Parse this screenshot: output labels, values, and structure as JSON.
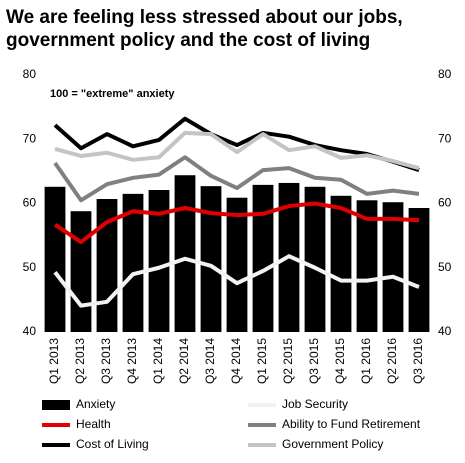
{
  "chart_data": {
    "type": "bar-line",
    "title": [
      "We are feeling less stressed about our jobs,",
      "government policy and the cost of living"
    ],
    "annotation": "100 = \"extreme\" anxiety",
    "categories": [
      "Q1 2013",
      "Q2 2013",
      "Q3 2013",
      "Q4 2013",
      "Q1 2014",
      "Q2 2014",
      "Q3 2014",
      "Q4 2014",
      "Q1 2015",
      "Q2 2015",
      "Q3 2015",
      "Q4 2015",
      "Q1 2016",
      "Q2 2016",
      "Q3 2016"
    ],
    "series": [
      {
        "name": "Anxiety",
        "kind": "bar",
        "color": "#000000",
        "values": [
          62.6,
          58.8,
          60.7,
          61.5,
          62.1,
          64.4,
          62.7,
          60.9,
          62.9,
          63.2,
          62.6,
          61.2,
          60.5,
          60.2,
          59.3
        ]
      },
      {
        "name": "Job Security",
        "kind": "line",
        "color": "#f2f2f2",
        "values": [
          49.3,
          44.1,
          44.7,
          49.0,
          50.0,
          51.4,
          50.3,
          47.6,
          49.5,
          51.8,
          50.0,
          48.0,
          48.0,
          48.6,
          47.0
        ]
      },
      {
        "name": "Health",
        "kind": "line",
        "color": "#e00000",
        "values": [
          56.7,
          54.0,
          57.1,
          58.8,
          58.4,
          59.3,
          58.5,
          58.2,
          58.4,
          59.6,
          60.0,
          59.3,
          57.6,
          57.6,
          57.4
        ]
      },
      {
        "name": "Ability to Fund Retirement",
        "kind": "line",
        "color": "#808080",
        "values": [
          66.3,
          60.5,
          63.0,
          64.0,
          64.5,
          67.2,
          64.3,
          62.4,
          65.2,
          65.5,
          64.0,
          63.7,
          61.5,
          62.0,
          61.5
        ]
      },
      {
        "name": "Cost of Living",
        "kind": "line",
        "color": "#000000",
        "values": [
          72.2,
          68.6,
          70.8,
          68.9,
          69.9,
          73.2,
          70.8,
          69.1,
          71.0,
          70.4,
          69.1,
          68.3,
          67.7,
          66.5,
          65.2
        ]
      },
      {
        "name": "Government Policy",
        "kind": "line",
        "color": "#c4c4c4",
        "values": [
          68.5,
          67.4,
          67.9,
          66.8,
          67.2,
          71.0,
          70.8,
          68.0,
          70.8,
          68.3,
          68.9,
          67.1,
          67.5,
          66.6,
          65.5
        ]
      }
    ],
    "ylim": [
      40,
      80
    ],
    "yticks": [
      40,
      50,
      60,
      70,
      80
    ],
    "y2lim": [
      40,
      80
    ],
    "y2ticks": [
      40,
      50,
      60,
      70,
      80
    ]
  }
}
